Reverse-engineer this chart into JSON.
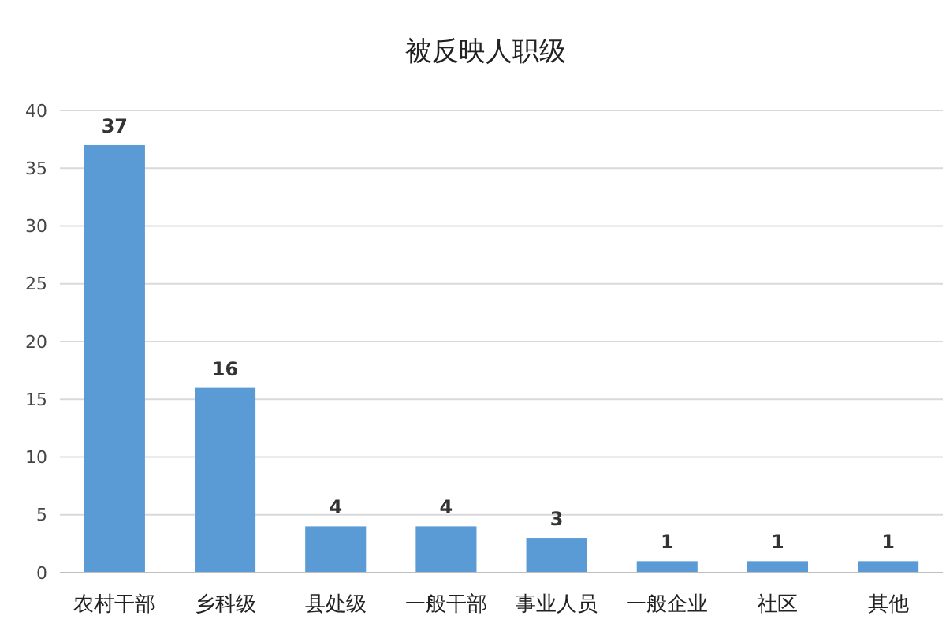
{
  "chart_data": {
    "type": "bar",
    "title": "被反映人职级",
    "categories": [
      "农村干部",
      "乡科级",
      "县处级",
      "一般干部",
      "事业人员",
      "一般企业",
      "社区",
      "其他"
    ],
    "values": [
      37,
      16,
      4,
      4,
      3,
      1,
      1,
      1
    ],
    "color": "#5b9bd5",
    "ylim": [
      0,
      40
    ],
    "yticks": [
      0,
      5,
      10,
      15,
      20,
      25,
      30,
      35,
      40
    ],
    "grid": "y",
    "data_labels": true
  }
}
